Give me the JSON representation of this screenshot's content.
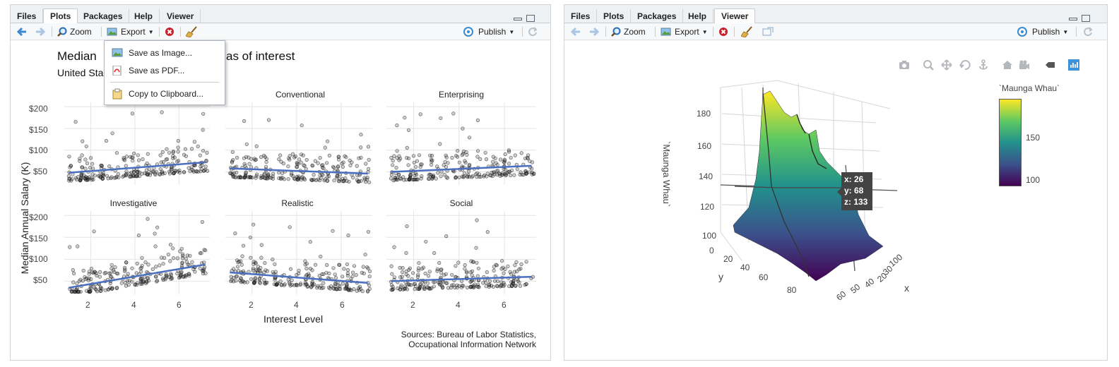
{
  "left_pane": {
    "tabs": [
      "Files",
      "Plots",
      "Packages",
      "Help",
      "Viewer"
    ],
    "active_tab": "Plots",
    "toolbar": {
      "zoom_label": "Zoom",
      "export_label": "Export",
      "publish_label": "Publish"
    },
    "export_menu": {
      "items": [
        "Save as Image...",
        "Save as PDF...",
        "Copy to Clipboard..."
      ]
    },
    "plot": {
      "title_left": "Median",
      "title_right": "as of interest",
      "subtitle": "United Sta",
      "ylabel": "Median Annual Salary (K)",
      "xlabel": "Interest Level",
      "caption_line1": "Sources: Bureau of Labor Statistics,",
      "caption_line2": "Occupational Information Network",
      "yticks": [
        "$200",
        "$150",
        "$100",
        "$50"
      ],
      "xticks": [
        "2",
        "4",
        "6"
      ],
      "facets": [
        "",
        "Conventional",
        "Enterprising",
        "Investigative",
        "Realistic",
        "Social"
      ]
    }
  },
  "right_pane": {
    "tabs": [
      "Files",
      "Plots",
      "Packages",
      "Help",
      "Viewer"
    ],
    "active_tab": "Viewer",
    "toolbar": {
      "zoom_label": "Zoom",
      "export_label": "Export",
      "publish_label": "Publish"
    },
    "plot3d": {
      "colorbar_title": "`Maunga Whau`",
      "colorbar_ticks": [
        "150",
        "100"
      ],
      "z_title": "`Maunga Whau`",
      "z_ticks": [
        "180",
        "160",
        "140",
        "120",
        "100",
        "0"
      ],
      "y_title": "y",
      "y_ticks": [
        "20",
        "40",
        "60",
        "80"
      ],
      "x_title": "x",
      "x_ticks": [
        "100",
        "30",
        "20",
        "60",
        "50",
        "40"
      ],
      "hover": {
        "x": "x: 26",
        "y": "y: 68",
        "z": "z: 133"
      },
      "colors": {
        "low": "#440154",
        "mid": "#21918c",
        "high": "#fde725"
      }
    }
  },
  "chart_data": [
    {
      "type": "scatter",
      "title": "Median … as of interest",
      "xlabel": "Interest Level",
      "ylabel": "Median Annual Salary (K)",
      "facets": [
        {
          "name": "",
          "trend": [
            [
              1,
              48
            ],
            [
              7.2,
              72
            ]
          ]
        },
        {
          "name": "Conventional",
          "trend": [
            [
              1,
              58
            ],
            [
              7.2,
              46
            ]
          ]
        },
        {
          "name": "Enterprising",
          "trend": [
            [
              1,
              50
            ],
            [
              7.2,
              64
            ]
          ]
        },
        {
          "name": "Investigative",
          "trend": [
            [
              1,
              35
            ],
            [
              7.2,
              88
            ]
          ]
        },
        {
          "name": "Realistic",
          "trend": [
            [
              1,
              70
            ],
            [
              7.2,
              46
            ]
          ]
        },
        {
          "name": "Social",
          "trend": [
            [
              1,
              50
            ],
            [
              7.2,
              60
            ]
          ]
        }
      ],
      "ylim": [
        20,
        210
      ],
      "xlim": [
        0.8,
        7.4
      ]
    }
  ]
}
